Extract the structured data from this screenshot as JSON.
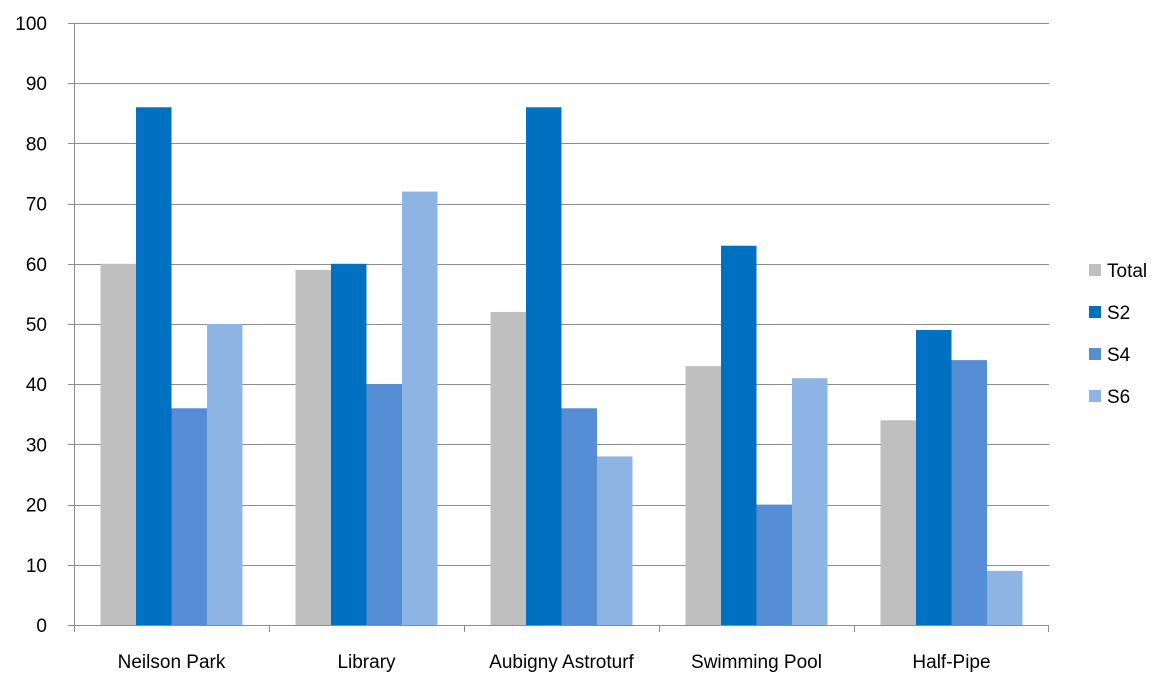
{
  "chart_data": {
    "type": "bar",
    "categories": [
      "Neilson Park",
      "Library",
      "Aubigny Astroturf",
      "Swimming Pool",
      "Half-Pipe"
    ],
    "series": [
      {
        "name": "Total",
        "values": [
          60,
          59,
          52,
          43,
          34
        ],
        "color": "#bfbfbf"
      },
      {
        "name": "S2",
        "values": [
          86,
          60,
          86,
          63,
          49
        ],
        "color": "#0070c0"
      },
      {
        "name": "S4",
        "values": [
          36,
          40,
          36,
          20,
          44
        ],
        "color": "#558ed5"
      },
      {
        "name": "S6",
        "values": [
          50,
          72,
          28,
          41,
          9
        ],
        "color": "#8eb4e3"
      }
    ],
    "title": "",
    "xlabel": "",
    "ylabel": "",
    "ylim": [
      0,
      100
    ],
    "yticks": [
      "0",
      "10",
      "20",
      "30",
      "40",
      "50",
      "60",
      "70",
      "80",
      "90",
      "100"
    ],
    "grid": true,
    "legend_position": "right"
  }
}
